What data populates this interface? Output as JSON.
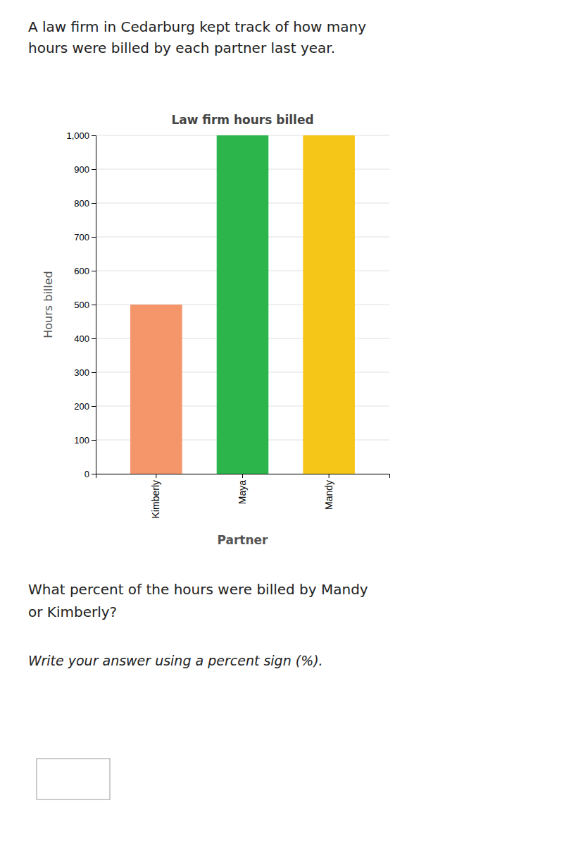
{
  "chart_data": {
    "type": "bar",
    "title": "Law firm hours billed",
    "categories": [
      "Kimberly",
      "Maya",
      "Mandy"
    ],
    "values": [
      500,
      1000,
      1000
    ],
    "colors": [
      "#F4956A",
      "#2BB54B",
      "#F5C518"
    ],
    "xlabel": "Partner",
    "ylabel": "Hours billed",
    "ylim": [
      0,
      1000
    ],
    "yticks": [
      0,
      100,
      200,
      300,
      400,
      500,
      600,
      700,
      800,
      900,
      {
        "value": 1000,
        "label": "1,000"
      }
    ],
    "grid": true,
    "annotations": [
      "A law firm in Cedarburg kept track of how many\nhours were billed by each partner last year.",
      "What percent of the hours were billed by Mandy\nor Kimberly?",
      "Write your answer using a percent sign (%)."
    ]
  }
}
